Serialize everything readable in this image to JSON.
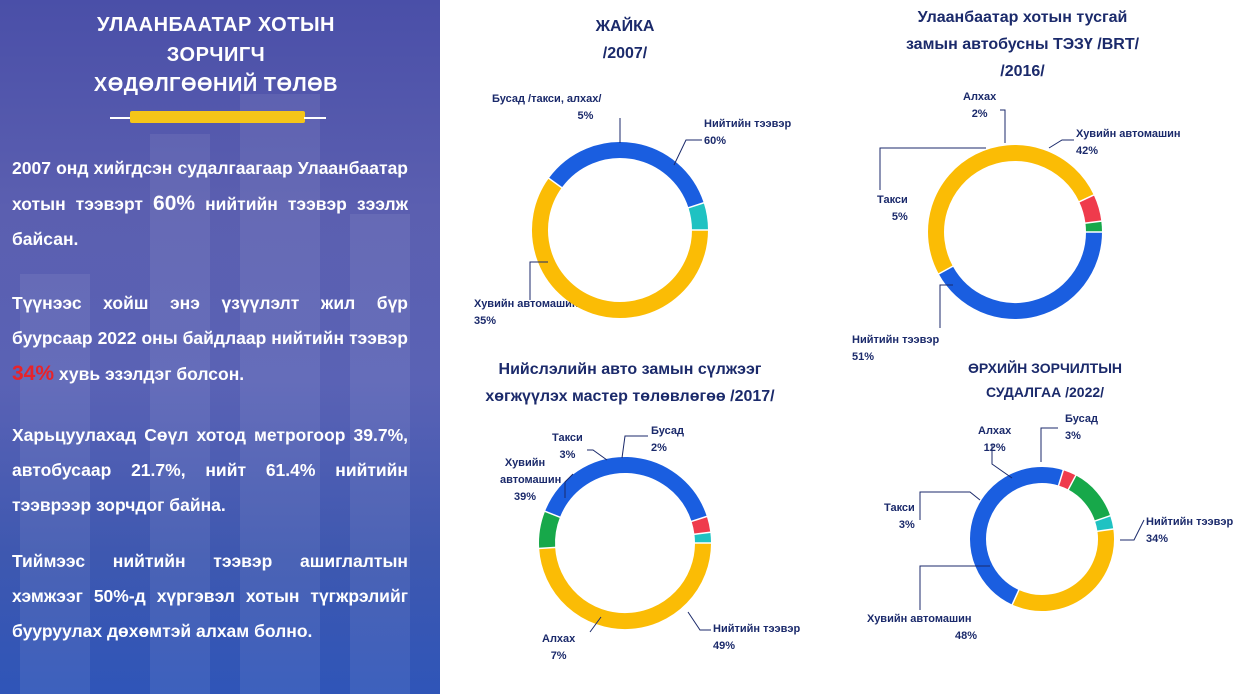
{
  "left": {
    "title_lines": [
      "УЛААНБААТАР ХОТЫН",
      "ЗОРЧИГЧ",
      "ХӨДӨЛГӨӨНИЙ ТӨЛӨВ"
    ],
    "p1": {
      "pre": "2007 онд хийгдсэн судалгаагаар Улаанбаатар хотын тээвэрт ",
      "hl": "60%",
      "post": " нийтийн тээвэр зээлж байсан."
    },
    "p2": {
      "pre": "Түүнээс хойш энэ үзүүлэлт жил бүр буурсаар 2022 оны байдлаар нийтийн тээвэр ",
      "hl": "34%",
      "post": " хувь эзэлдэг болсон."
    },
    "p3": "Харьцуулахад Сөүл хотод метрогоор 39.7%, автобусаар 21.7%, нийт 61.4% нийтийн тээврээр зорчдог байна.",
    "p4": "Тиймээс нийтийн тээвэр ашиглалтын хэмжээг 50%-д хүргэвэл хотын түгжрэлийг бууруулах дөхөмтэй алхам болно."
  },
  "colors": {
    "yellow": "#fbbc05",
    "blue": "#1a5ee0",
    "teal": "#1fc2c2",
    "red": "#ef3b4c",
    "green": "#17a84a",
    "text": "#1b2a6b"
  },
  "chart_data": [
    {
      "type": "pie",
      "title": "ЖАЙКА /2007/",
      "title_lines": [
        "ЖАЙКА",
        "/2007/"
      ],
      "slices": [
        {
          "label": "Нийтийн тээвэр",
          "value": 60,
          "text": "60%",
          "color": "yellow"
        },
        {
          "label": "Хувийн автомашин",
          "value": 35,
          "text": "35%",
          "color": "blue"
        },
        {
          "label": "Бусад /такси, алхах/",
          "value": 5,
          "text": "5%",
          "color": "teal"
        }
      ]
    },
    {
      "type": "pie",
      "title": "Улаанбаатар хотын тусгай замын автобусны ТЭЗҮ /BRT/ /2016/",
      "title_lines": [
        "Улаанбаатар хотын тусгай",
        "замын автобусны ТЭЗҮ /BRT/",
        "/2016/"
      ],
      "slices": [
        {
          "label": "Хувийн автомашин",
          "value": 42,
          "text": "42%",
          "color": "blue"
        },
        {
          "label": "Нийтийн тээвэр",
          "value": 51,
          "text": "51%",
          "color": "yellow"
        },
        {
          "label": "Такси",
          "value": 5,
          "text": "5%",
          "color": "red"
        },
        {
          "label": "Алхах",
          "value": 2,
          "text": "2%",
          "color": "green"
        }
      ]
    },
    {
      "type": "pie",
      "title": "Нийслэлийн авто замын сүлжээг хөгжүүлэх мастер төлөвлөгөө /2017/",
      "title_lines": [
        "Нийслэлийн авто замын сүлжээг",
        "хөгжүүлэх мастер төлөвлөгөө /2017/"
      ],
      "slices": [
        {
          "label": "Нийтийн тээвэр",
          "value": 49,
          "text": "49%",
          "color": "yellow"
        },
        {
          "label": "Алхах",
          "value": 7,
          "text": "7%",
          "color": "green"
        },
        {
          "label": "Хувийн автомашин",
          "value": 39,
          "text": "39%",
          "color": "blue"
        },
        {
          "label": "Такси",
          "value": 3,
          "text": "3%",
          "color": "red"
        },
        {
          "label": "Бусад",
          "value": 2,
          "text": "2%",
          "color": "teal"
        }
      ]
    },
    {
      "type": "pie",
      "title": "ӨРХИЙН ЗОРЧИЛТЫН СУДАЛГАА /2022/",
      "title_lines": [
        "ӨРХИЙН ЗОРЧИЛТЫН",
        "СУДАЛГАА /2022/"
      ],
      "slices": [
        {
          "label": "Нийтийн тээвэр",
          "value": 34,
          "text": "34%",
          "color": "yellow"
        },
        {
          "label": "Хувийн автомашин",
          "value": 48,
          "text": "48%",
          "color": "blue"
        },
        {
          "label": "Такси",
          "value": 3,
          "text": "3%",
          "color": "red"
        },
        {
          "label": "Алхах",
          "value": 12,
          "text": "12%",
          "color": "green"
        },
        {
          "label": "Бусад",
          "value": 3,
          "text": "3%",
          "color": "teal"
        }
      ]
    }
  ]
}
